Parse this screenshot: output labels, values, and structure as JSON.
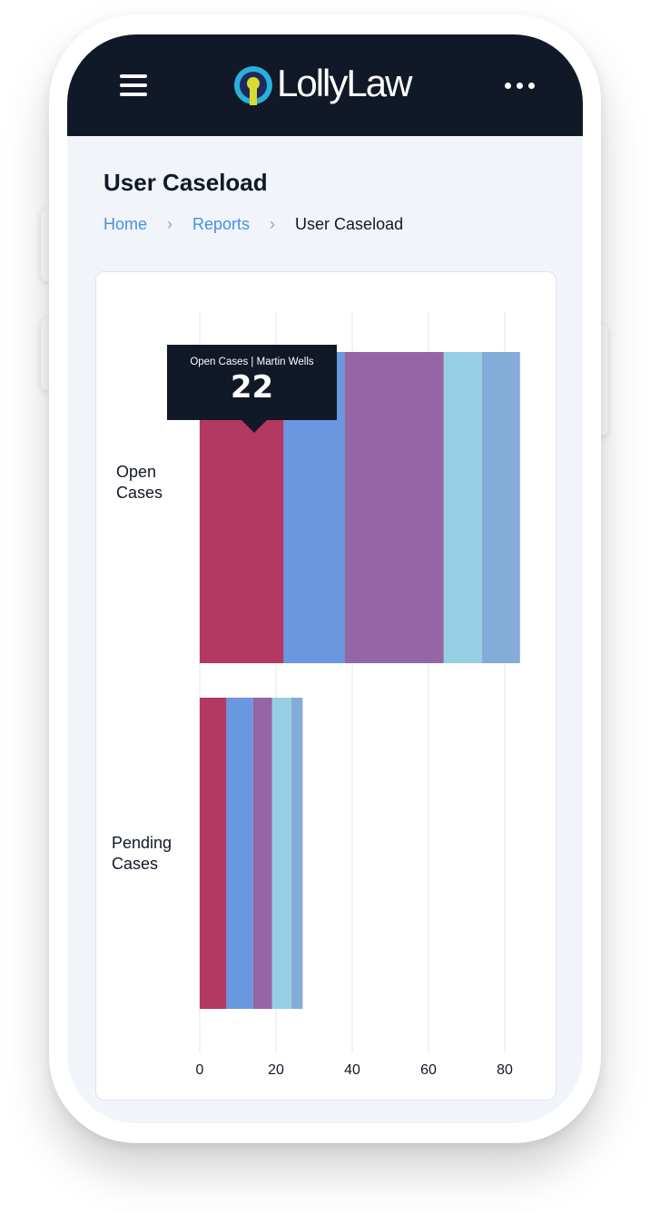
{
  "header": {
    "logo": "LollyLaw",
    "menu_icon": "hamburger-icon",
    "more_icon": "more-horizontal-icon"
  },
  "page": {
    "title": "User Caseload"
  },
  "breadcrumb": [
    {
      "label": "Home"
    },
    {
      "label": "Reports"
    },
    {
      "label": "User Caseload"
    }
  ],
  "chart_data": {
    "type": "bar",
    "orientation": "horizontal",
    "stacked": true,
    "categories": [
      "Open Cases",
      "Pending Cases"
    ],
    "category_lines": [
      [
        "Open",
        "Cases"
      ],
      [
        "Pending",
        "Cases"
      ]
    ],
    "xlim": [
      0,
      88
    ],
    "xticks": [
      "0",
      "20",
      "40",
      "60",
      "80"
    ],
    "grid": true,
    "colors": [
      "#b33862",
      "#6997e0",
      "#9566a5",
      "#96cfe4",
      "#84acd8"
    ],
    "series": [
      {
        "values": [
          22,
          7
        ]
      },
      {
        "values": [
          16,
          7
        ]
      },
      {
        "values": [
          26,
          5
        ]
      },
      {
        "values": [
          10,
          5
        ]
      },
      {
        "values": [
          10,
          3
        ]
      }
    ],
    "tooltip": {
      "label": "Open Cases | Martin Wells",
      "value": "22"
    }
  }
}
